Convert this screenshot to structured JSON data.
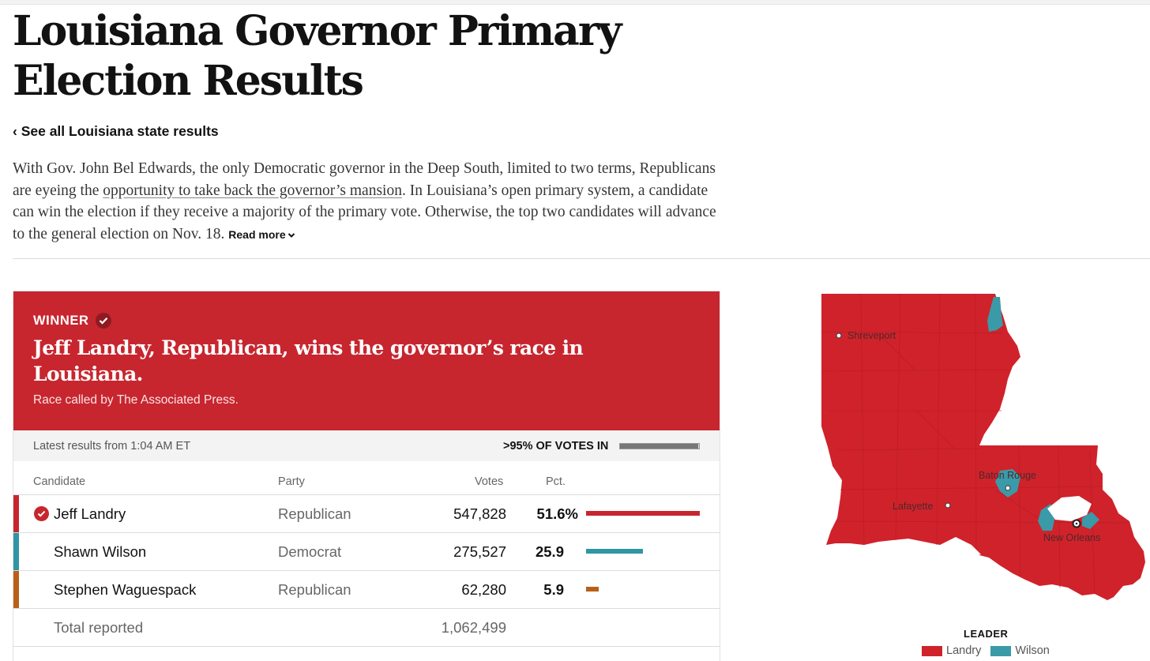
{
  "page": {
    "title": "Louisiana Governor Primary Election Results",
    "back_link": "‹ See all Louisiana state results",
    "intro_before": "With Gov. John Bel Edwards, the only Democratic governor in the Deep South, limited to two terms, Republicans are eyeing the ",
    "intro_link": "opportunity to take back the governor’s mansion",
    "intro_after": ". In Louisiana’s open primary system, a candidate can win the election if they receive a majority of the primary vote. Otherwise, the top two candidates will advance to the general election on Nov. 18. ",
    "read_more": "Read more"
  },
  "banner": {
    "winner_label": "WINNER",
    "headline": "Jeff Landry, Republican, wins the governor’s race in Louisiana.",
    "called_by": "Race called by The Associated Press."
  },
  "status": {
    "latest": "Latest results from 1:04 AM ET",
    "votes_in": ">95% OF VOTES IN",
    "reporting_fraction": 0.99
  },
  "table": {
    "headers": {
      "candidate": "Candidate",
      "party": "Party",
      "votes": "Votes",
      "pct": "Pct."
    },
    "rows": [
      {
        "name": "Jeff Landry",
        "party": "Republican",
        "votes": "547,828",
        "pct": "51.6%",
        "pct_value": 51.6,
        "color": "#c7262f",
        "winner": true
      },
      {
        "name": "Shawn Wilson",
        "party": "Democrat",
        "votes": "275,527",
        "pct": "25.9",
        "pct_value": 25.9,
        "color": "#2f96a5",
        "winner": false
      },
      {
        "name": "Stephen Waguespack",
        "party": "Republican",
        "votes": "62,280",
        "pct": "5.9",
        "pct_value": 5.9,
        "color": "#b8601a",
        "winner": false
      }
    ],
    "total_label": "Total reported",
    "total_votes": "1,062,499"
  },
  "map": {
    "cities": {
      "shreveport": "Shreveport",
      "baton_rouge": "Baton Rouge",
      "lafayette": "Lafayette",
      "new_orleans": "New Orleans"
    },
    "colors": {
      "landry": "#d0222b",
      "wilson": "#3a9aa8"
    },
    "legend_title": "LEADER",
    "legend": [
      {
        "name": "Landry",
        "color": "#d0222b"
      },
      {
        "name": "Wilson",
        "color": "#3a9aa8"
      }
    ]
  }
}
